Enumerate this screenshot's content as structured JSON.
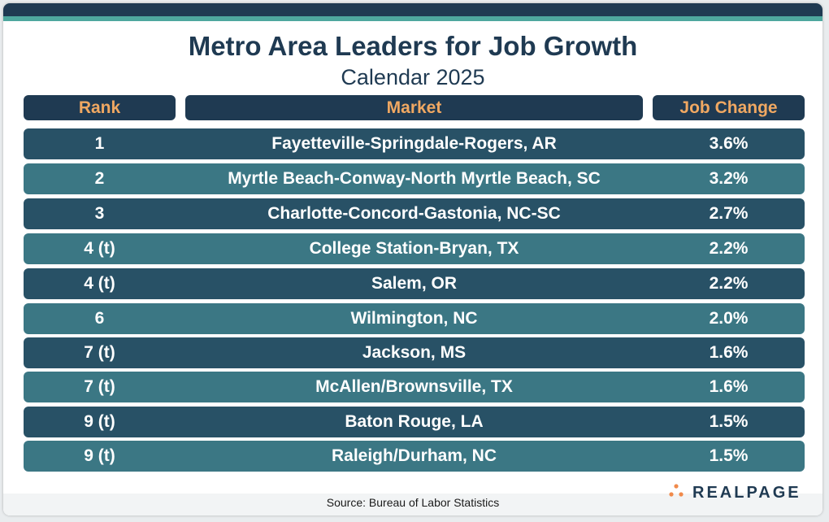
{
  "title": "Metro Area Leaders for Job Growth",
  "subtitle": "Calendar 2025",
  "columns": {
    "rank": "Rank",
    "market": "Market",
    "change": "Job Change"
  },
  "source": "Source: Bureau of Labor Statistics",
  "brand": "REALPAGE",
  "colors": {
    "header_bg": "#1f3a52",
    "header_text": "#f0a862",
    "row_dark": "#285166",
    "row_light": "#3b7784",
    "accent": "#4ea79e"
  },
  "chart_data": {
    "type": "table",
    "title": "Metro Area Leaders for Job Growth",
    "subtitle": "Calendar 2025",
    "columns": [
      "Rank",
      "Market",
      "Job Change"
    ],
    "rows": [
      {
        "rank": "1",
        "market": "Fayetteville-Springdale-Rogers, AR",
        "change": "3.6%"
      },
      {
        "rank": "2",
        "market": "Myrtle Beach-Conway-North Myrtle Beach, SC",
        "change": "3.2%"
      },
      {
        "rank": "3",
        "market": "Charlotte-Concord-Gastonia, NC-SC",
        "change": "2.7%"
      },
      {
        "rank": "4 (t)",
        "market": "College Station-Bryan, TX",
        "change": "2.2%"
      },
      {
        "rank": "4 (t)",
        "market": "Salem, OR",
        "change": "2.2%"
      },
      {
        "rank": "6",
        "market": "Wilmington, NC",
        "change": "2.0%"
      },
      {
        "rank": "7 (t)",
        "market": "Jackson, MS",
        "change": "1.6%"
      },
      {
        "rank": "7 (t)",
        "market": "McAllen/Brownsville, TX",
        "change": "1.6%"
      },
      {
        "rank": "9 (t)",
        "market": "Baton Rouge, LA",
        "change": "1.5%"
      },
      {
        "rank": "9 (t)",
        "market": "Raleigh/Durham, NC",
        "change": "1.5%"
      }
    ]
  }
}
